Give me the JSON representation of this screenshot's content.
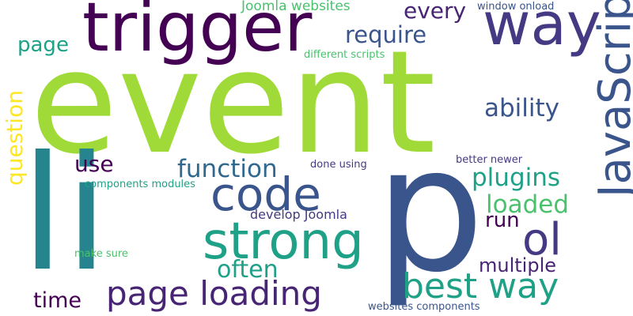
{
  "colors": {
    "lime": "#a0da39",
    "teal": "#25848e",
    "navy": "#3a548c",
    "purple": "#440154",
    "indigo": "#443983",
    "slate": "#31688e",
    "green": "#1fa187",
    "mint": "#4ac16d",
    "yellow": "#fde725",
    "violet": "#482475"
  },
  "words": [
    {
      "text": "event"
    },
    {
      "text": "li"
    },
    {
      "text": "p"
    },
    {
      "text": "trigger"
    },
    {
      "text": "way"
    },
    {
      "text": "JavaScript"
    },
    {
      "text": "strong"
    },
    {
      "text": "code"
    },
    {
      "text": "ol"
    },
    {
      "text": "best way"
    },
    {
      "text": "page loading"
    },
    {
      "text": "function"
    },
    {
      "text": "plugins"
    },
    {
      "text": "loaded"
    },
    {
      "text": "ability"
    },
    {
      "text": "require"
    },
    {
      "text": "every"
    },
    {
      "text": "often"
    },
    {
      "text": "multiple"
    },
    {
      "text": "run"
    },
    {
      "text": "time"
    },
    {
      "text": "use"
    },
    {
      "text": "question"
    },
    {
      "text": "page"
    },
    {
      "text": "Joomla websites"
    },
    {
      "text": "window onload"
    },
    {
      "text": "different scripts"
    },
    {
      "text": "develop Joomla"
    },
    {
      "text": "done using"
    },
    {
      "text": "better newer"
    },
    {
      "text": "components modules"
    },
    {
      "text": "make sure"
    },
    {
      "text": "websites components"
    }
  ]
}
